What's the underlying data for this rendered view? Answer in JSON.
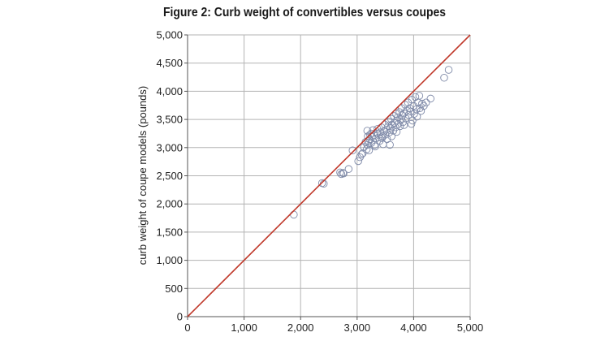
{
  "chart_data": {
    "type": "scatter",
    "title": "Figure 2: Curb weight of convertibles versus coupes",
    "xlabel": "",
    "ylabel": "curb weight of coupe models (pounds)",
    "xlim": [
      0,
      5000
    ],
    "ylim": [
      0,
      5000
    ],
    "x_ticks": [
      "0",
      "1,000",
      "2,000",
      "3,000",
      "4,000",
      "5,000"
    ],
    "y_ticks": [
      "0",
      "500",
      "1,000",
      "1,500",
      "2,000",
      "2,500",
      "3,000",
      "3,500",
      "4,000",
      "4,500",
      "5,000"
    ],
    "grid": true,
    "reference_line": {
      "from": [
        0,
        0
      ],
      "to": [
        5000,
        5000
      ],
      "color": "#c0392b"
    },
    "marker_color": "#7f8aa8",
    "series": [
      {
        "marker": "open-circle",
        "points": [
          [
            1880,
            1810
          ],
          [
            2380,
            2370
          ],
          [
            2410,
            2360
          ],
          [
            2700,
            2560
          ],
          [
            2720,
            2530
          ],
          [
            2750,
            2550
          ],
          [
            2760,
            2540
          ],
          [
            2850,
            2620
          ],
          [
            2920,
            2950
          ],
          [
            3020,
            2760
          ],
          [
            3050,
            2830
          ],
          [
            3080,
            2880
          ],
          [
            3100,
            2900
          ],
          [
            3120,
            3010
          ],
          [
            3150,
            3100
          ],
          [
            3170,
            2970
          ],
          [
            3180,
            3050
          ],
          [
            3190,
            3200
          ],
          [
            3200,
            3120
          ],
          [
            3210,
            2950
          ],
          [
            3220,
            3150
          ],
          [
            3230,
            3230
          ],
          [
            3250,
            3080
          ],
          [
            3260,
            3190
          ],
          [
            3280,
            3310
          ],
          [
            3300,
            3220
          ],
          [
            3310,
            3050
          ],
          [
            3330,
            3160
          ],
          [
            3350,
            3250
          ],
          [
            3360,
            3330
          ],
          [
            3380,
            3180
          ],
          [
            3400,
            3120
          ],
          [
            3410,
            3270
          ],
          [
            3430,
            3360
          ],
          [
            3450,
            3200
          ],
          [
            3460,
            3060
          ],
          [
            3480,
            3290
          ],
          [
            3490,
            3410
          ],
          [
            3500,
            3230
          ],
          [
            3520,
            3320
          ],
          [
            3530,
            3150
          ],
          [
            3550,
            3380
          ],
          [
            3560,
            3460
          ],
          [
            3570,
            3270
          ],
          [
            3590,
            3350
          ],
          [
            3600,
            3510
          ],
          [
            3610,
            3200
          ],
          [
            3620,
            3410
          ],
          [
            3640,
            3300
          ],
          [
            3650,
            3560
          ],
          [
            3660,
            3440
          ],
          [
            3680,
            3360
          ],
          [
            3690,
            3600
          ],
          [
            3700,
            3480
          ],
          [
            3720,
            3540
          ],
          [
            3730,
            3420
          ],
          [
            3750,
            3630
          ],
          [
            3760,
            3380
          ],
          [
            3780,
            3500
          ],
          [
            3790,
            3700
          ],
          [
            3800,
            3570
          ],
          [
            3810,
            3450
          ],
          [
            3830,
            3610
          ],
          [
            3850,
            3760
          ],
          [
            3860,
            3520
          ],
          [
            3880,
            3660
          ],
          [
            3900,
            3800
          ],
          [
            3910,
            3580
          ],
          [
            3930,
            3700
          ],
          [
            3950,
            3640
          ],
          [
            3970,
            3850
          ],
          [
            3980,
            3480
          ],
          [
            4000,
            3740
          ],
          [
            4010,
            3600
          ],
          [
            4030,
            3900
          ],
          [
            4050,
            3680
          ],
          [
            4060,
            3550
          ],
          [
            4080,
            3800
          ],
          [
            4100,
            3920
          ],
          [
            4110,
            3700
          ],
          [
            4130,
            3650
          ],
          [
            4150,
            3780
          ],
          [
            4180,
            3740
          ],
          [
            4220,
            3800
          ],
          [
            4300,
            3870
          ],
          [
            4540,
            4240
          ],
          [
            4620,
            4380
          ],
          [
            3580,
            3050
          ],
          [
            3700,
            3280
          ],
          [
            3830,
            3400
          ],
          [
            3960,
            3420
          ],
          [
            3250,
            3250
          ],
          [
            3320,
            3020
          ],
          [
            3440,
            3170
          ],
          [
            3180,
            3300
          ]
        ]
      }
    ]
  }
}
